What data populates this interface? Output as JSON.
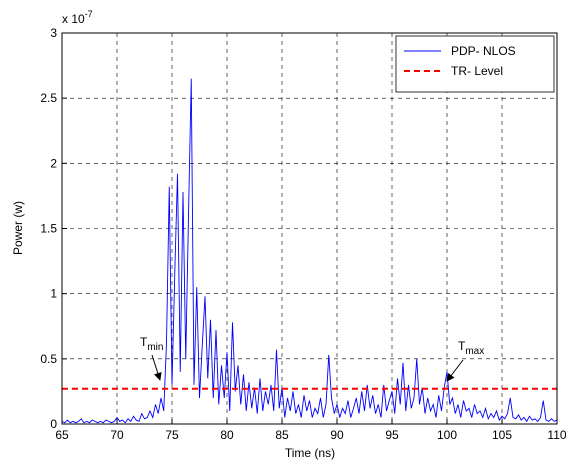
{
  "chart_data": {
    "type": "line",
    "x_label": "Time (ns)",
    "y_label": "Power (w)",
    "y_multiplier": {
      "base": "x 10",
      "exponent": "-7"
    },
    "xlim": [
      65,
      110
    ],
    "ylim": [
      0,
      3
    ],
    "xticks": [
      65,
      70,
      75,
      80,
      85,
      90,
      95,
      100,
      105,
      110
    ],
    "yticks": [
      0,
      0.5,
      1,
      1.5,
      2,
      2.5,
      3
    ],
    "grid": true,
    "legend": "upper right",
    "annotations": [
      {
        "text": "T",
        "sub": "min"
      },
      {
        "text": "T",
        "sub": "max"
      }
    ],
    "series": [
      {
        "name": "PDP- NLOS",
        "color": "#0000ff",
        "style": "solid",
        "x": [
          65,
          65.25,
          65.5,
          65.75,
          66,
          66.25,
          66.5,
          66.75,
          67,
          67.25,
          67.5,
          67.75,
          68,
          68.25,
          68.5,
          68.75,
          69,
          69.25,
          69.5,
          69.75,
          70,
          70.25,
          70.5,
          70.75,
          71,
          71.25,
          71.5,
          71.75,
          72,
          72.25,
          72.5,
          72.75,
          73,
          73.25,
          73.5,
          73.75,
          74,
          74.25,
          74.5,
          74.75,
          75,
          75.25,
          75.5,
          75.75,
          76,
          76.25,
          76.5,
          76.75,
          77,
          77.25,
          77.5,
          77.75,
          78,
          78.25,
          78.5,
          78.75,
          79,
          79.25,
          79.5,
          79.75,
          80,
          80.25,
          80.5,
          80.75,
          81,
          81.25,
          81.5,
          81.75,
          82,
          82.25,
          82.5,
          82.75,
          83,
          83.25,
          83.5,
          83.75,
          84,
          84.25,
          84.5,
          84.75,
          85,
          85.25,
          85.5,
          85.75,
          86,
          86.25,
          86.5,
          86.75,
          87,
          87.25,
          87.5,
          87.75,
          88,
          88.25,
          88.5,
          88.75,
          89,
          89.25,
          89.5,
          89.75,
          90,
          90.25,
          90.5,
          90.75,
          91,
          91.25,
          91.5,
          91.75,
          92,
          92.25,
          92.5,
          92.75,
          93,
          93.25,
          93.5,
          93.75,
          94,
          94.25,
          94.5,
          94.75,
          95,
          95.25,
          95.5,
          95.75,
          96,
          96.25,
          96.5,
          96.75,
          97,
          97.25,
          97.5,
          97.75,
          98,
          98.25,
          98.5,
          98.75,
          99,
          99.25,
          99.5,
          99.75,
          100,
          100.25,
          100.5,
          100.75,
          101,
          101.25,
          101.5,
          101.75,
          102,
          102.25,
          102.5,
          102.75,
          103,
          103.25,
          103.5,
          103.75,
          104,
          104.25,
          104.5,
          104.75,
          105,
          105.25,
          105.5,
          105.75,
          106,
          106.25,
          106.5,
          106.75,
          107,
          107.25,
          107.5,
          107.75,
          108,
          108.25,
          108.5,
          108.75,
          109,
          109.25,
          109.5,
          109.75,
          110
        ],
        "values": [
          0.02,
          0.01,
          0.03,
          0.01,
          0.02,
          0.01,
          0.02,
          0.04,
          0.01,
          0.02,
          0.01,
          0.03,
          0.02,
          0.01,
          0.02,
          0.01,
          0.03,
          0.02,
          0.01,
          0.02,
          0.05,
          0.02,
          0.03,
          0.01,
          0.04,
          0.02,
          0.06,
          0.03,
          0.02,
          0.08,
          0.04,
          0.05,
          0.1,
          0.05,
          0.15,
          0.08,
          0.2,
          0.1,
          0.62,
          1.82,
          0.3,
          1.15,
          1.92,
          0.4,
          1.78,
          0.5,
          1.6,
          2.65,
          0.3,
          1.05,
          0.2,
          0.6,
          0.98,
          0.35,
          0.8,
          0.2,
          0.72,
          0.15,
          0.45,
          0.2,
          0.55,
          0.1,
          0.78,
          0.25,
          0.45,
          0.15,
          0.38,
          0.1,
          0.32,
          0.12,
          0.28,
          0.08,
          0.35,
          0.1,
          0.25,
          0.15,
          0.3,
          0.1,
          0.57,
          0.12,
          0.28,
          0.05,
          0.2,
          0.1,
          0.25,
          0.08,
          0.15,
          0.05,
          0.22,
          0.1,
          0.18,
          0.05,
          0.12,
          0.08,
          0.2,
          0.05,
          0.15,
          0.53,
          0.2,
          0.08,
          0.15,
          0.05,
          0.12,
          0.08,
          0.18,
          0.05,
          0.12,
          0.2,
          0.08,
          0.25,
          0.1,
          0.3,
          0.12,
          0.22,
          0.08,
          0.15,
          0.05,
          0.3,
          0.1,
          0.18,
          0.25,
          0.08,
          0.35,
          0.15,
          0.47,
          0.1,
          0.3,
          0.12,
          0.2,
          0.5,
          0.15,
          0.28,
          0.08,
          0.2,
          0.1,
          0.15,
          0.05,
          0.22,
          0.1,
          0.28,
          0.4,
          0.15,
          0.2,
          0.08,
          0.15,
          0.05,
          0.18,
          0.1,
          0.12,
          0.05,
          0.15,
          0.08,
          0.1,
          0.05,
          0.12,
          0.04,
          0.08,
          0.05,
          0.1,
          0.03,
          0.06,
          0.04,
          0.08,
          0.2,
          0.05,
          0.04,
          0.07,
          0.03,
          0.05,
          0.02,
          0.06,
          0.03,
          0.04,
          0.02,
          0.05,
          0.18,
          0.03,
          0.02,
          0.04,
          0.02,
          0.03
        ]
      },
      {
        "name": "TR- Level",
        "color": "#ff0000",
        "style": "dashed",
        "x": [
          65,
          110
        ],
        "values": [
          0.27,
          0.27
        ]
      }
    ]
  }
}
